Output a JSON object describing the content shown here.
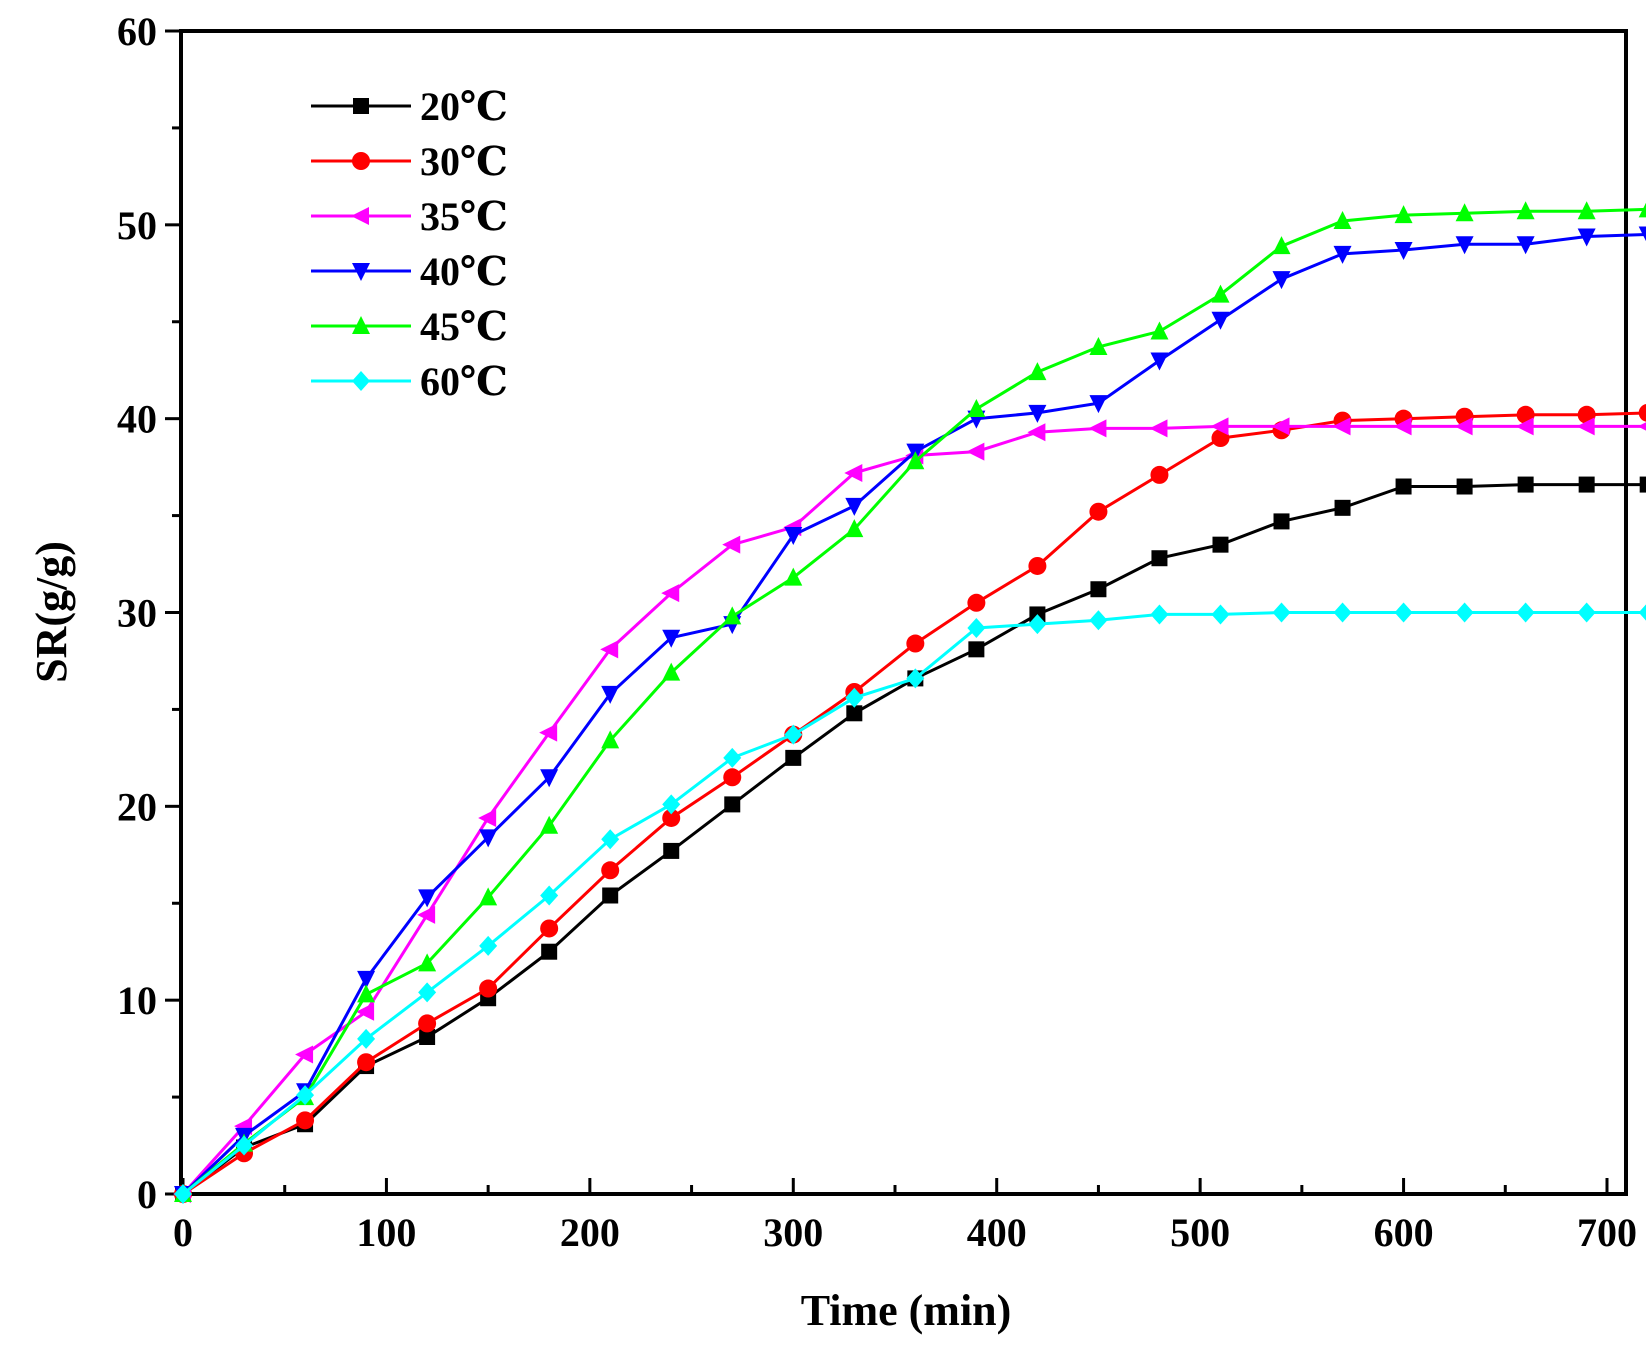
{
  "chart_data": {
    "type": "line",
    "title": "",
    "xlabel": "Time (min)",
    "ylabel": "SR(g/g)",
    "xlim": [
      -5,
      730
    ],
    "ylim": [
      0,
      60
    ],
    "x_ticks": [
      "0",
      "100",
      "200",
      "300",
      "400",
      "500",
      "600",
      "700"
    ],
    "y_ticks": [
      "0",
      "10",
      "20",
      "30",
      "40",
      "50",
      "60"
    ],
    "legend_position": "top-left",
    "grid": false,
    "x": [
      0,
      30,
      60,
      90,
      120,
      150,
      180,
      210,
      240,
      270,
      300,
      330,
      360,
      390,
      420,
      450,
      480,
      510,
      540,
      570,
      600,
      630,
      660,
      690,
      720
    ],
    "series": [
      {
        "name": "20℃",
        "color": "#000000",
        "marker": "square",
        "values": [
          0,
          2.4,
          3.6,
          6.6,
          8.1,
          10.1,
          12.5,
          15.4,
          17.7,
          20.1,
          22.5,
          24.8,
          26.6,
          28.1,
          29.9,
          31.2,
          32.8,
          33.5,
          34.7,
          35.4,
          36.5,
          36.5,
          36.6,
          36.6,
          36.6
        ]
      },
      {
        "name": "30℃",
        "color": "#ff0000",
        "marker": "circle",
        "values": [
          0,
          2.1,
          3.8,
          6.8,
          8.8,
          10.6,
          13.7,
          16.7,
          19.4,
          21.5,
          23.7,
          25.9,
          28.4,
          30.5,
          32.4,
          35.2,
          37.1,
          39.0,
          39.4,
          39.9,
          40.0,
          40.1,
          40.2,
          40.2,
          40.3
        ]
      },
      {
        "name": "35℃",
        "color": "#ff00ff",
        "marker": "triangle-left",
        "values": [
          0,
          3.5,
          7.2,
          9.4,
          14.4,
          19.4,
          23.8,
          28.1,
          31.0,
          33.5,
          34.4,
          37.2,
          38.1,
          38.3,
          39.3,
          39.5,
          39.5,
          39.6,
          39.6,
          39.6,
          39.6,
          39.6,
          39.6,
          39.6,
          39.6
        ]
      },
      {
        "name": "40℃",
        "color": "#0000ff",
        "marker": "triangle-down",
        "values": [
          0,
          3.0,
          5.3,
          11.1,
          15.3,
          18.4,
          21.5,
          25.8,
          28.7,
          29.4,
          34.0,
          35.5,
          38.3,
          40.0,
          40.3,
          40.8,
          43.0,
          45.1,
          47.2,
          48.5,
          48.7,
          49.0,
          49.0,
          49.4,
          49.5
        ]
      },
      {
        "name": "45℃",
        "color": "#00ff00",
        "marker": "triangle-up",
        "values": [
          0,
          2.6,
          5.0,
          10.3,
          11.9,
          15.3,
          19.0,
          23.4,
          26.9,
          29.8,
          31.8,
          34.3,
          37.8,
          40.5,
          42.4,
          43.7,
          44.5,
          46.4,
          48.9,
          50.2,
          50.5,
          50.6,
          50.7,
          50.7,
          50.8
        ]
      },
      {
        "name": "60℃",
        "color": "#00ffff",
        "marker": "diamond",
        "values": [
          0,
          2.5,
          5.1,
          8.0,
          10.4,
          12.8,
          15.4,
          18.3,
          20.1,
          22.5,
          23.7,
          25.6,
          26.6,
          29.2,
          29.4,
          29.6,
          29.9,
          29.9,
          30.0,
          30.0,
          30.0,
          30.0,
          30.0,
          30.0,
          30.0
        ]
      }
    ]
  }
}
